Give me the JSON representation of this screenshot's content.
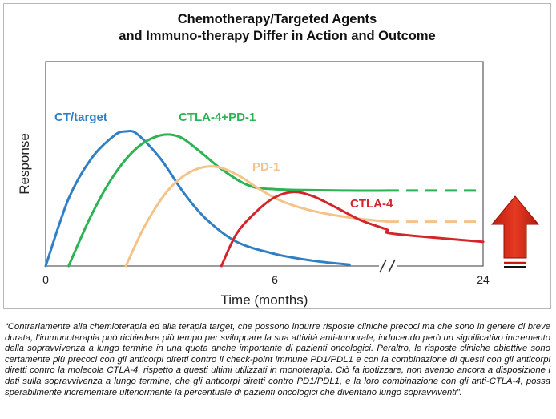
{
  "figure": {
    "title_line1": "Chemotherapy/Targeted Agents",
    "title_line2": "and Immuno-therapy Differ in Action and Outcome"
  },
  "chart_data": {
    "type": "line",
    "title": "Chemotherapy/Targeted Agents and Immuno-therapy Differ in Action and Outcome",
    "xlabel": "Time (months)",
    "ylabel": "Response",
    "x_ticks": [
      "0",
      "6",
      "24"
    ],
    "x_axis_break": true,
    "series": [
      {
        "name": "CT/target",
        "color": "#2f7fc6",
        "points": [
          [
            0,
            0
          ],
          [
            0.6,
            0.5
          ],
          [
            1.2,
            0.8
          ],
          [
            1.8,
            0.97
          ],
          [
            2.1,
            1.0
          ],
          [
            2.4,
            0.98
          ],
          [
            3.0,
            0.8
          ],
          [
            3.6,
            0.55
          ],
          [
            4.2,
            0.35
          ],
          [
            5.0,
            0.18
          ],
          [
            6.0,
            0.09
          ],
          [
            7.0,
            0.04
          ],
          [
            8.0,
            0.01
          ]
        ],
        "dashed_from_x": null
      },
      {
        "name": "CTLA-4+PD-1",
        "color": "#2bb354",
        "points": [
          [
            0.6,
            0
          ],
          [
            1.2,
            0.38
          ],
          [
            1.8,
            0.68
          ],
          [
            2.4,
            0.88
          ],
          [
            3.0,
            0.97
          ],
          [
            3.5,
            0.96
          ],
          [
            4.0,
            0.86
          ],
          [
            4.6,
            0.72
          ],
          [
            5.3,
            0.6
          ],
          [
            6.0,
            0.57
          ],
          [
            8.0,
            0.56
          ],
          [
            9.0,
            0.56
          ],
          [
            24,
            0.56
          ]
        ],
        "dashed_from_x": 9.0
      },
      {
        "name": "PD-1",
        "color": "#f4c38a",
        "points": [
          [
            2.1,
            0
          ],
          [
            2.6,
            0.3
          ],
          [
            3.2,
            0.56
          ],
          [
            3.8,
            0.7
          ],
          [
            4.4,
            0.74
          ],
          [
            5.0,
            0.68
          ],
          [
            5.6,
            0.57
          ],
          [
            6.2,
            0.48
          ],
          [
            7.0,
            0.41
          ],
          [
            8.0,
            0.36
          ],
          [
            9.0,
            0.33
          ],
          [
            24,
            0.33
          ]
        ],
        "dashed_from_x": 9.0
      },
      {
        "name": "CTLA-4",
        "color": "#d3262c",
        "points": [
          [
            4.6,
            0
          ],
          [
            5.0,
            0.24
          ],
          [
            5.5,
            0.4
          ],
          [
            6.0,
            0.51
          ],
          [
            6.5,
            0.55
          ],
          [
            7.0,
            0.52
          ],
          [
            7.6,
            0.44
          ],
          [
            8.3,
            0.34
          ],
          [
            9.0,
            0.27
          ],
          [
            10,
            0.24
          ],
          [
            24,
            0.18
          ]
        ],
        "dashed_from_x": null
      }
    ],
    "ylim": [
      0,
      1
    ],
    "annotation": "up-arrow"
  },
  "caption": "“Contrariamente alla chemioterapia ed alla terapia target, che possono indurre risposte cliniche precoci ma che sono in genere di breve durata, l’immunoterapia può richiedere più tempo per sviluppare la sua attività anti-tumorale, inducendo però un significativo incremento della sopravvivenza a lungo termine in una quota anche importante di pazienti oncologici. Peraltro, le risposte cliniche obiettive sono certamente più precoci con gli anticorpi diretti contro il check-point immune PD1/PDL1 e con la combinazione di questi con gli anticorpi diretti contro la molecola CTLA-4, rispetto a questi ultimi utilizzati in monoterapia. Ciò fa ipotizzare, non avendo ancora a disposizione i dati sulla sopravvivenza a lungo termine, che gli anticorpi diretti contro PD1/PDL1, e la loro combinazione con gli anti-CTLA-4, possa sperabilmente incrementare ulteriormente la percentuale di pazienti oncologici che diventano lungo sopravviventi”."
}
